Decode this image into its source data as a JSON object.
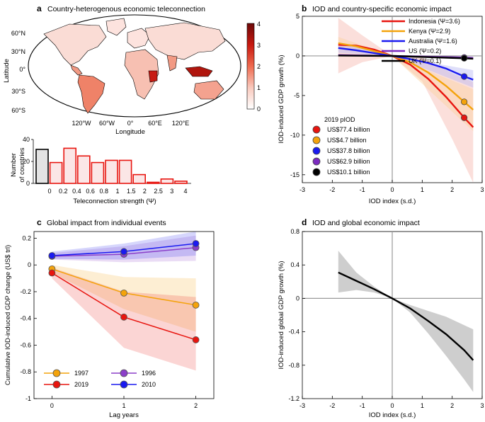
{
  "colors": {
    "indonesia": "#e8150f",
    "kenya": "#f4a30b",
    "australia": "#1a1af0",
    "us": "#7b2bc0",
    "uk": "#000000",
    "ev1997": "#f4a30b",
    "ev2019": "#e8150f",
    "ev1996": "#8b3fc9",
    "ev2010": "#1a1af0",
    "hist_edge": "#e8150f",
    "hist_fill": "#fbe6e6",
    "map_ocean": "#ffffff",
    "map_land_low": "#fbe9e7"
  },
  "panel_a": {
    "label": "a",
    "title": "Country-heterogenous economic teleconnection",
    "xlabel": "Longitude",
    "ylabel": "Latitude",
    "lat_ticks": [
      "60°N",
      "30°N",
      "0°",
      "30°S",
      "60°S"
    ],
    "lon_ticks": [
      "120°W",
      "60°W",
      "0°",
      "60°E",
      "120°E"
    ],
    "colorbar_ticks": [
      "4",
      "3",
      "2",
      "1",
      "0"
    ]
  },
  "hist": {
    "ylabel_line1": "Number",
    "ylabel_line2": "of countries",
    "xlabel": "Teleconnection strength (Ψ)",
    "y_ticks": [
      "0",
      "20",
      "40"
    ],
    "x_ticks": [
      "0",
      "0.2",
      "0.4",
      "0.6",
      "0.8",
      "1",
      "1.5",
      "2",
      "2.5",
      "3",
      "4"
    ]
  },
  "chart_data": [
    {
      "type": "bar",
      "panel": "a-histogram",
      "title": "",
      "xlabel": "Teleconnection strength (Ψ)",
      "ylabel": "Number of countries",
      "categories": [
        "0",
        "0-0.2",
        "0.2-0.4",
        "0.4-0.6",
        "0.6-0.8",
        "0.8-1",
        "1-1.5",
        "1.5-2",
        "2-2.5",
        "2.5-3",
        "3-4"
      ],
      "values": [
        31,
        19,
        32,
        25,
        19,
        21,
        21,
        8,
        1,
        4,
        2
      ],
      "ylim": [
        0,
        40
      ]
    },
    {
      "type": "line",
      "panel": "b",
      "title": "IOD and country-specific economic impact",
      "xlabel": "IOD index (s.d.)",
      "ylabel": "IOD-induced GDP growth (%)",
      "xlim": [
        -3,
        3
      ],
      "ylim": [
        -16,
        5
      ],
      "x_ticks": [
        "-3",
        "-2",
        "-1",
        "0",
        "1",
        "2",
        "3"
      ],
      "y_ticks": [
        "5",
        "0",
        "-5",
        "-10",
        "-15"
      ],
      "legend": [
        "Indonesia (Ψ=3.6)",
        "Kenya (Ψ=2.9)",
        "Australia (Ψ=1.6)",
        "US (Ψ=0.2)",
        "UK (Ψ=0.1)"
      ],
      "series": [
        {
          "name": "Indonesia",
          "key": "indonesia",
          "psi": 3.6,
          "x": [
            -1.8,
            -1.2,
            -0.6,
            0,
            0.6,
            1.2,
            1.8,
            2.4,
            2.7
          ],
          "y": [
            1.4,
            1.3,
            0.8,
            0,
            -1.1,
            -2.9,
            -5.2,
            -7.8,
            -9.0
          ]
        },
        {
          "name": "Kenya",
          "key": "kenya",
          "psi": 2.9,
          "x": [
            -1.8,
            -1.2,
            -0.6,
            0,
            0.6,
            1.2,
            1.8,
            2.4,
            2.7
          ],
          "y": [
            1.6,
            1.2,
            0.6,
            0,
            -0.8,
            -2.1,
            -3.8,
            -5.8,
            -6.8
          ]
        },
        {
          "name": "Australia",
          "key": "australia",
          "psi": 1.6,
          "x": [
            -1.8,
            -1.2,
            -0.6,
            0,
            0.6,
            1.2,
            1.8,
            2.4,
            2.7
          ],
          "y": [
            1.0,
            0.7,
            0.35,
            0,
            -0.4,
            -0.9,
            -1.6,
            -2.6,
            -3.0
          ]
        },
        {
          "name": "US",
          "key": "us",
          "psi": 0.2,
          "x": [
            -1.8,
            0,
            2.4,
            2.7
          ],
          "y": [
            0.1,
            0,
            -0.2,
            -0.25
          ]
        },
        {
          "name": "UK",
          "key": "uk",
          "psi": 0.1,
          "x": [
            -1.8,
            0,
            2.4,
            2.7
          ],
          "y": [
            0.05,
            0,
            -0.3,
            -0.35
          ]
        }
      ],
      "band_indonesia": {
        "x": [
          -1.8,
          -1,
          0,
          1,
          2,
          2.7
        ],
        "upper": [
          4.8,
          2.6,
          0,
          -0.2,
          -2.2,
          -3.3
        ],
        "lower": [
          -2.2,
          -0.8,
          0,
          -3.2,
          -10.5,
          -16.0
        ]
      },
      "markers_2019": {
        "title": "2019 pIOD",
        "x": 2.4,
        "items": [
          {
            "key": "indonesia",
            "label": "US$77.4 billion",
            "y": -7.8
          },
          {
            "key": "kenya",
            "label": "US$4.7 billion",
            "y": -5.8
          },
          {
            "key": "australia",
            "label": "US$37.8 billion",
            "y": -2.6
          },
          {
            "key": "us",
            "label": "US$62.9 billion",
            "y": -0.2
          },
          {
            "key": "uk",
            "label": "US$10.1 billion",
            "y": -0.3
          }
        ]
      }
    },
    {
      "type": "line",
      "panel": "c",
      "title": "Global impact from individual events",
      "xlabel": "Lag years",
      "ylabel": "Cumulative IOD-induced GDP change (US$ trl)",
      "xlim": [
        -0.25,
        2.25
      ],
      "ylim": [
        -1,
        0.25
      ],
      "x_ticks": [
        "0",
        "1",
        "2"
      ],
      "y_ticks": [
        "0.2",
        "0",
        "-0.2",
        "-0.4",
        "-0.6",
        "-0.8",
        "-1"
      ],
      "categories": [
        0,
        1,
        2
      ],
      "series": [
        {
          "name": "1997",
          "key": "ev1997",
          "values": [
            -0.03,
            -0.21,
            -0.3
          ],
          "band_upper": [
            0.0,
            -0.09,
            -0.1
          ],
          "band_lower": [
            -0.06,
            -0.33,
            -0.5
          ]
        },
        {
          "name": "2019",
          "key": "ev2019",
          "values": [
            -0.06,
            -0.39,
            -0.56
          ],
          "band_upper": [
            -0.02,
            -0.2,
            -0.24
          ],
          "band_lower": [
            -0.1,
            -0.62,
            -0.79
          ]
        },
        {
          "name": "1996",
          "key": "ev1996",
          "values": [
            0.065,
            0.08,
            0.13
          ],
          "band_upper": [
            0.09,
            0.14,
            0.22
          ],
          "band_lower": [
            0.04,
            0.02,
            0.03
          ]
        },
        {
          "name": "2010",
          "key": "ev2010",
          "values": [
            0.07,
            0.1,
            0.16
          ],
          "band_upper": [
            0.1,
            0.16,
            0.25
          ],
          "band_lower": [
            0.045,
            0.04,
            0.07
          ]
        }
      ]
    },
    {
      "type": "line",
      "panel": "d",
      "title": "IOD and global economic impact",
      "xlabel": "IOD index (s.d.)",
      "ylabel": "IOD-induced global GDP growth (%)",
      "xlim": [
        -3,
        3
      ],
      "ylim": [
        -1.2,
        0.8
      ],
      "x_ticks": [
        "-3",
        "-2",
        "-1",
        "0",
        "1",
        "2",
        "3"
      ],
      "y_ticks": [
        "0.8",
        "0.4",
        "0",
        "-0.4",
        "-0.8",
        "-1.2"
      ],
      "series": [
        {
          "name": "Global",
          "x": [
            -1.8,
            -1.2,
            -0.6,
            0,
            0.6,
            1.2,
            1.8,
            2.4,
            2.7
          ],
          "y": [
            0.31,
            0.21,
            0.11,
            0,
            -0.12,
            -0.27,
            -0.43,
            -0.62,
            -0.74
          ],
          "band_upper": [
            0.57,
            0.31,
            0.14,
            0,
            -0.08,
            -0.15,
            -0.22,
            -0.32,
            -0.37
          ],
          "band_lower": [
            0.07,
            0.1,
            0.07,
            0,
            -0.17,
            -0.42,
            -0.69,
            -0.97,
            -1.12
          ]
        }
      ]
    }
  ]
}
